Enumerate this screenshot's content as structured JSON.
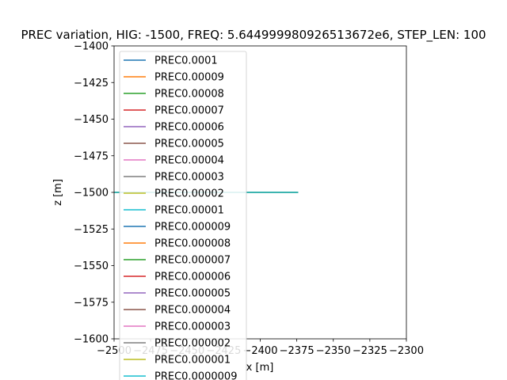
{
  "chart_data": {
    "type": "line",
    "title": "PREC variation, HIG: -1500, FREQ: 5.644999980926513672e6, STEP_LEN: 100",
    "xlabel": "x [m]",
    "ylabel": "z [m]",
    "xlim": [
      -2500,
      -2300
    ],
    "ylim": [
      -1600,
      -1400
    ],
    "xticks": [
      -2500,
      -2475,
      -2450,
      -2425,
      -2400,
      -2375,
      -2350,
      -2325,
      -2300
    ],
    "yticks": [
      -1400,
      -1425,
      -1450,
      -1475,
      -1500,
      -1525,
      -1550,
      -1575,
      -1600
    ],
    "xtick_labels": [
      "−2500",
      "−2475",
      "−2450",
      "−2425",
      "−2400",
      "−2375",
      "−2350",
      "−2325",
      "−2300"
    ],
    "ytick_labels": [
      "−1400",
      "−1425",
      "−1450",
      "−1475",
      "−1500",
      "−1525",
      "−1550",
      "−1575",
      "−1600"
    ],
    "grid": false,
    "legend_position": "upper-left",
    "series": [
      {
        "name": "PREC0.0001",
        "color": "#1f77b4",
        "x": [
          -2500,
          -2374
        ],
        "y": [
          -1500,
          -1500
        ]
      },
      {
        "name": "PREC0.00009",
        "color": "#ff7f0e",
        "x": [
          -2500,
          -2374
        ],
        "y": [
          -1500,
          -1500
        ]
      },
      {
        "name": "PREC0.00008",
        "color": "#2ca02c",
        "x": [
          -2500,
          -2374
        ],
        "y": [
          -1500,
          -1500
        ]
      },
      {
        "name": "PREC0.00007",
        "color": "#d62728",
        "x": [
          -2500,
          -2374
        ],
        "y": [
          -1500,
          -1500
        ]
      },
      {
        "name": "PREC0.00006",
        "color": "#9467bd",
        "x": [
          -2500,
          -2374
        ],
        "y": [
          -1500,
          -1500
        ]
      },
      {
        "name": "PREC0.00005",
        "color": "#8c564b",
        "x": [
          -2500,
          -2374
        ],
        "y": [
          -1500,
          -1500
        ]
      },
      {
        "name": "PREC0.00004",
        "color": "#e377c2",
        "x": [
          -2500,
          -2374
        ],
        "y": [
          -1500,
          -1500
        ]
      },
      {
        "name": "PREC0.00003",
        "color": "#7f7f7f",
        "x": [
          -2500,
          -2374
        ],
        "y": [
          -1500,
          -1500
        ]
      },
      {
        "name": "PREC0.00002",
        "color": "#bcbd22",
        "x": [
          -2500,
          -2374
        ],
        "y": [
          -1500,
          -1500
        ]
      },
      {
        "name": "PREC0.00001",
        "color": "#17becf",
        "x": [
          -2500,
          -2374
        ],
        "y": [
          -1500,
          -1500
        ]
      },
      {
        "name": "PREC0.000009",
        "color": "#1f77b4",
        "x": [
          -2500,
          -2374
        ],
        "y": [
          -1500,
          -1500
        ]
      },
      {
        "name": "PREC0.000008",
        "color": "#ff7f0e",
        "x": [
          -2500,
          -2374
        ],
        "y": [
          -1500,
          -1500
        ]
      },
      {
        "name": "PREC0.000007",
        "color": "#2ca02c",
        "x": [
          -2500,
          -2374
        ],
        "y": [
          -1500,
          -1500
        ]
      },
      {
        "name": "PREC0.000006",
        "color": "#d62728",
        "x": [
          -2500,
          -2374
        ],
        "y": [
          -1500,
          -1500
        ]
      },
      {
        "name": "PREC0.000005",
        "color": "#9467bd",
        "x": [
          -2500,
          -2374
        ],
        "y": [
          -1500,
          -1500
        ]
      },
      {
        "name": "PREC0.000004",
        "color": "#8c564b",
        "x": [
          -2500,
          -2374
        ],
        "y": [
          -1500,
          -1500
        ]
      },
      {
        "name": "PREC0.000003",
        "color": "#e377c2",
        "x": [
          -2500,
          -2374
        ],
        "y": [
          -1500,
          -1500
        ]
      },
      {
        "name": "PREC0.000002",
        "color": "#7f7f7f",
        "x": [
          -2500,
          -2374
        ],
        "y": [
          -1500,
          -1500
        ]
      },
      {
        "name": "PREC0.000001",
        "color": "#bcbd22",
        "x": [
          -2500,
          -2374
        ],
        "y": [
          -1500,
          -1500
        ]
      },
      {
        "name": "PREC0.0000009",
        "color": "#17becf",
        "x": [
          -2500,
          -2374
        ],
        "y": [
          -1500,
          -1500
        ]
      }
    ]
  }
}
